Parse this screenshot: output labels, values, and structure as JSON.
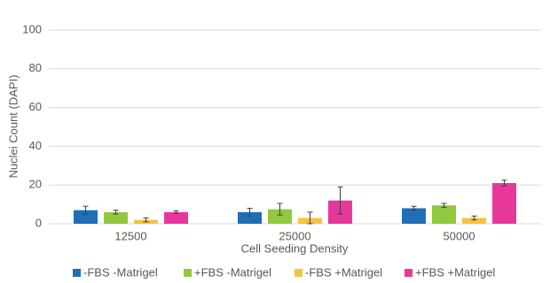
{
  "chart_data": {
    "type": "bar",
    "y_label": "Nuclei Count (DAPI)",
    "x_label": "Cell Seeding Density",
    "categories": [
      "12500",
      "25000",
      "50000"
    ],
    "series": [
      {
        "name": "-FBS -Matrigel",
        "color": "#1f6fb5",
        "values": [
          7,
          6,
          8
        ],
        "errors": [
          2,
          2,
          1
        ]
      },
      {
        "name": "+FBS -Matrigel",
        "color": "#92c83e",
        "values": [
          6,
          7.5,
          9.5
        ],
        "errors": [
          1,
          3,
          1
        ]
      },
      {
        "name": "-FBS +Matrigel",
        "color": "#f5c242",
        "values": [
          2,
          3,
          3
        ],
        "errors": [
          1,
          3,
          1
        ]
      },
      {
        "name": "+FBS +Matrigel",
        "color": "#e8379a",
        "values": [
          6,
          12,
          21
        ],
        "errors": [
          0.7,
          7,
          1.5
        ]
      }
    ],
    "ylim": [
      0,
      100
    ],
    "yticks": [
      0,
      20,
      40,
      60,
      80,
      100
    ],
    "grid": true,
    "legend": "bottom"
  }
}
